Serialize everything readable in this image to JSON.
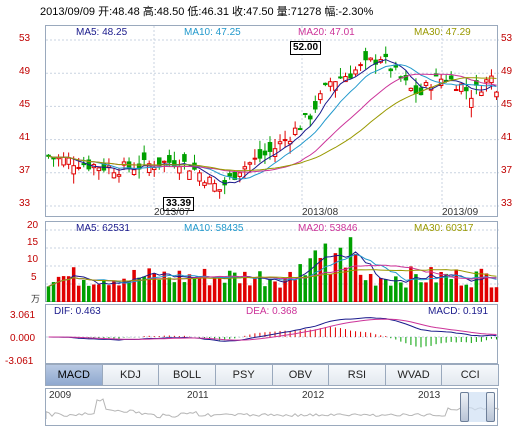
{
  "header": "2013/09/09 开:48.48 高:48.50 低:46.31 收:47.50 量:71278 幅:-2.30%",
  "price": {
    "ma_labels": [
      {
        "text": "MA5: 48.25",
        "color": "#1a1a8c"
      },
      {
        "text": "MA10: 47.25",
        "color": "#2299cc"
      },
      {
        "text": "MA20: 47.01",
        "color": "#cc3399"
      },
      {
        "text": "MA30: 47.29",
        "color": "#999900"
      }
    ],
    "y_ticks": [
      "53",
      "49",
      "45",
      "41",
      "37",
      "33"
    ],
    "x_ticks": [
      "2013/07",
      "2013/08",
      "2013/09"
    ],
    "high_annotation": "52.00",
    "low_annotation": "33.39"
  },
  "volume": {
    "ma_labels": [
      {
        "text": "MA5: 62531",
        "color": "#1a1a8c"
      },
      {
        "text": "MA10: 58435",
        "color": "#2299cc"
      },
      {
        "text": "MA20: 53846",
        "color": "#cc3399"
      },
      {
        "text": "MA30: 60317",
        "color": "#999900"
      }
    ],
    "y_ticks": [
      "20",
      "15",
      "10",
      "5"
    ],
    "unit": "万"
  },
  "macd": {
    "labels": [
      {
        "text": "DIF: 0.463",
        "color": "#1a1a8c"
      },
      {
        "text": "DEA: 0.368",
        "color": "#cc3399"
      },
      {
        "text": "MACD: 0.191",
        "color": "#1a1a8c"
      }
    ],
    "y_ticks": [
      "3.061",
      "0.000",
      "-3.061"
    ]
  },
  "tabs": [
    "MACD",
    "KDJ",
    "BOLL",
    "PSY",
    "OBV",
    "RSI",
    "WVAD",
    "CCI"
  ],
  "active_tab": "MACD",
  "navigator": {
    "years": [
      "2009",
      "2011",
      "2012",
      "2013"
    ]
  },
  "colors": {
    "up": "#e00000",
    "down": "#00a000",
    "grid": "#c9d3e0"
  }
}
